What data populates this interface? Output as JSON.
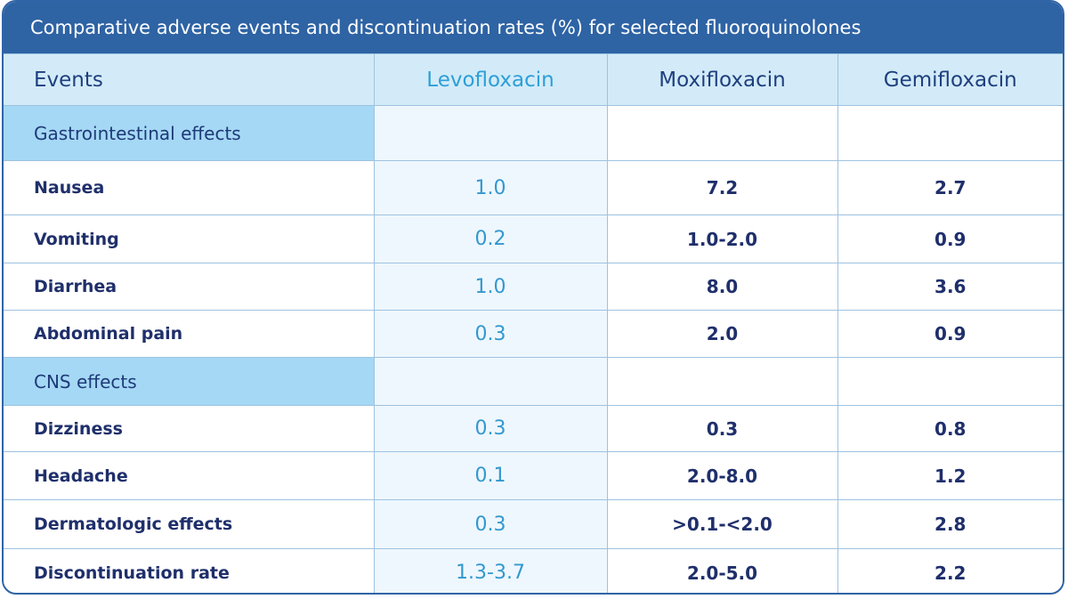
{
  "title": "Comparative adverse events and discontinuation rates (%) for selected fluoroquinolones",
  "columns": {
    "events": "Events",
    "levofloxacin": "Levofloxacin",
    "moxifloxacin": "Moxifloxacin",
    "gemifloxacin": "Gemifloxacin"
  },
  "sections": {
    "gastrointestinal": "Gastrointestinal effects",
    "cns": "CNS effects"
  },
  "rows": {
    "nausea": {
      "label": "Nausea",
      "levo": "1.0",
      "moxi": "7.2",
      "gemi": "2.7"
    },
    "vomiting": {
      "label": "Vomiting",
      "levo": "0.2",
      "moxi": "1.0-2.0",
      "gemi": "0.9"
    },
    "diarrhea": {
      "label": "Diarrhea",
      "levo": "1.0",
      "moxi": "8.0",
      "gemi": "3.6"
    },
    "abdominal_pain": {
      "label": "Abdominal pain",
      "levo": "0.3",
      "moxi": "2.0",
      "gemi": "0.9"
    },
    "dizziness": {
      "label": "Dizziness",
      "levo": "0.3",
      "moxi": "0.3",
      "gemi": "0.8"
    },
    "headache": {
      "label": "Headache",
      "levo": "0.1",
      "moxi": "2.0-8.0",
      "gemi": "1.2"
    },
    "dermatologic": {
      "label": "Dermatologic effects",
      "levo": "0.3",
      "moxi": ">0.1-<2.0",
      "gemi": "2.8"
    },
    "discontinuation": {
      "label": "Discontinuation rate",
      "levo": "1.3-3.7",
      "moxi": "2.0-5.0",
      "gemi": "2.2"
    }
  }
}
